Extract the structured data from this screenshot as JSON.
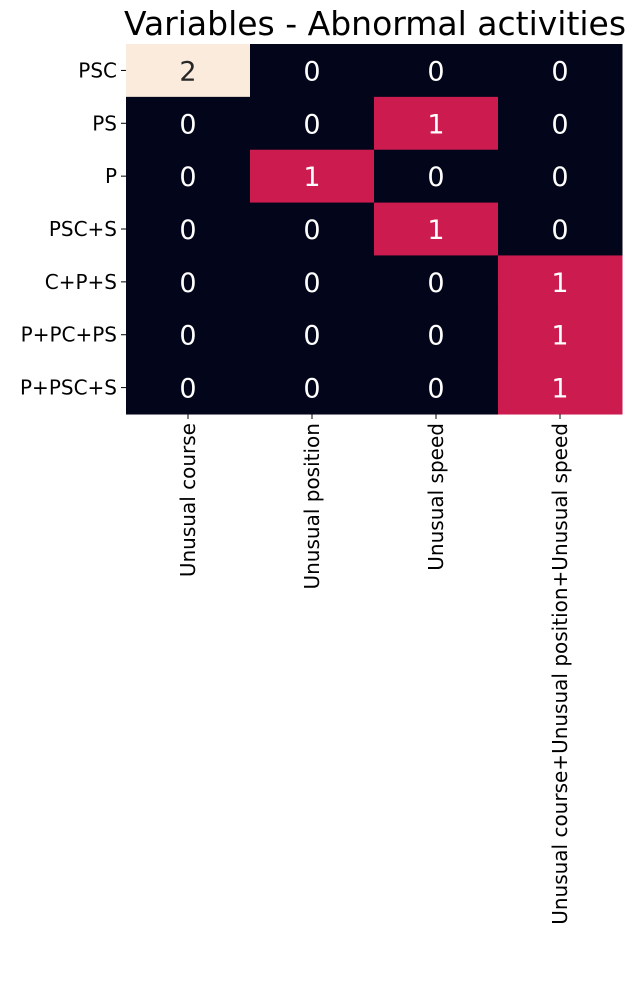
{
  "chart_data": {
    "type": "heatmap",
    "title": "Variables - Abnormal activities",
    "xlabel": "",
    "ylabel": "",
    "x_categories": [
      "Unusual course",
      "Unusual position",
      "Unusual speed",
      "Unusual course+Unusual position+Unusual speed"
    ],
    "y_categories": [
      "PSC",
      "PS",
      "P",
      "PSC+S",
      "C+P+S",
      "P+PC+PS",
      "P+PSC+S"
    ],
    "values": [
      [
        2,
        0,
        0,
        0
      ],
      [
        0,
        0,
        1,
        0
      ],
      [
        0,
        1,
        0,
        0
      ],
      [
        0,
        0,
        1,
        0
      ],
      [
        0,
        0,
        0,
        1
      ],
      [
        0,
        0,
        0,
        1
      ],
      [
        0,
        0,
        0,
        1
      ]
    ],
    "value_range": [
      0,
      2
    ],
    "annotated": true,
    "colorbar": false,
    "colors": {
      "low": "#03051a",
      "mid": "#cb1b4f",
      "high": "#faebdd",
      "label_on_dark": "#ffffff",
      "label_on_light": "#262626"
    }
  }
}
